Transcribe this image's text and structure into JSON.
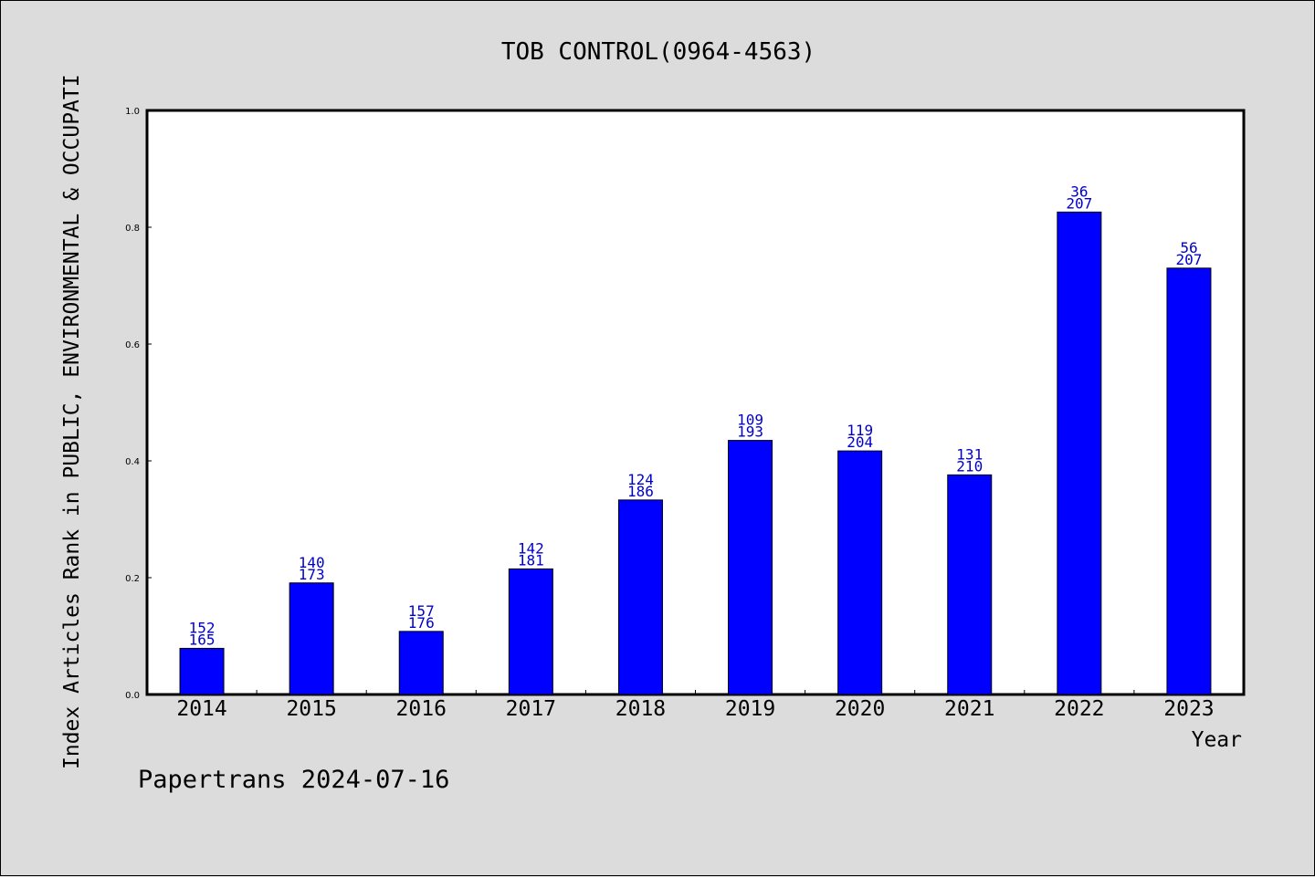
{
  "chart_data": {
    "type": "bar",
    "title": "TOB CONTROL(0964-4563)",
    "ylabel": "Index Articles Rank in PUBLIC, ENVIRONMENTAL & OCCUPATI",
    "xlabel": "Year",
    "ylim": [
      0,
      1.0
    ],
    "yticks": [
      "0.0",
      "0.2",
      "0.4",
      "0.6",
      "0.8",
      "1.0"
    ],
    "categories": [
      "2014",
      "2015",
      "2016",
      "2017",
      "2018",
      "2019",
      "2020",
      "2021",
      "2022",
      "2023"
    ],
    "values": [
      0.079,
      0.191,
      0.108,
      0.215,
      0.333,
      0.435,
      0.417,
      0.376,
      0.826,
      0.73
    ],
    "rank": [
      "152",
      "140",
      "157",
      "142",
      "124",
      "109",
      "119",
      "131",
      "36",
      "56"
    ],
    "total": [
      "165",
      "173",
      "176",
      "181",
      "186",
      "193",
      "204",
      "210",
      "207",
      "207"
    ],
    "bar_color": "#0000ff",
    "label_color": "#0000cc",
    "grid": false
  },
  "footer": "Papertrans 2024-07-16"
}
